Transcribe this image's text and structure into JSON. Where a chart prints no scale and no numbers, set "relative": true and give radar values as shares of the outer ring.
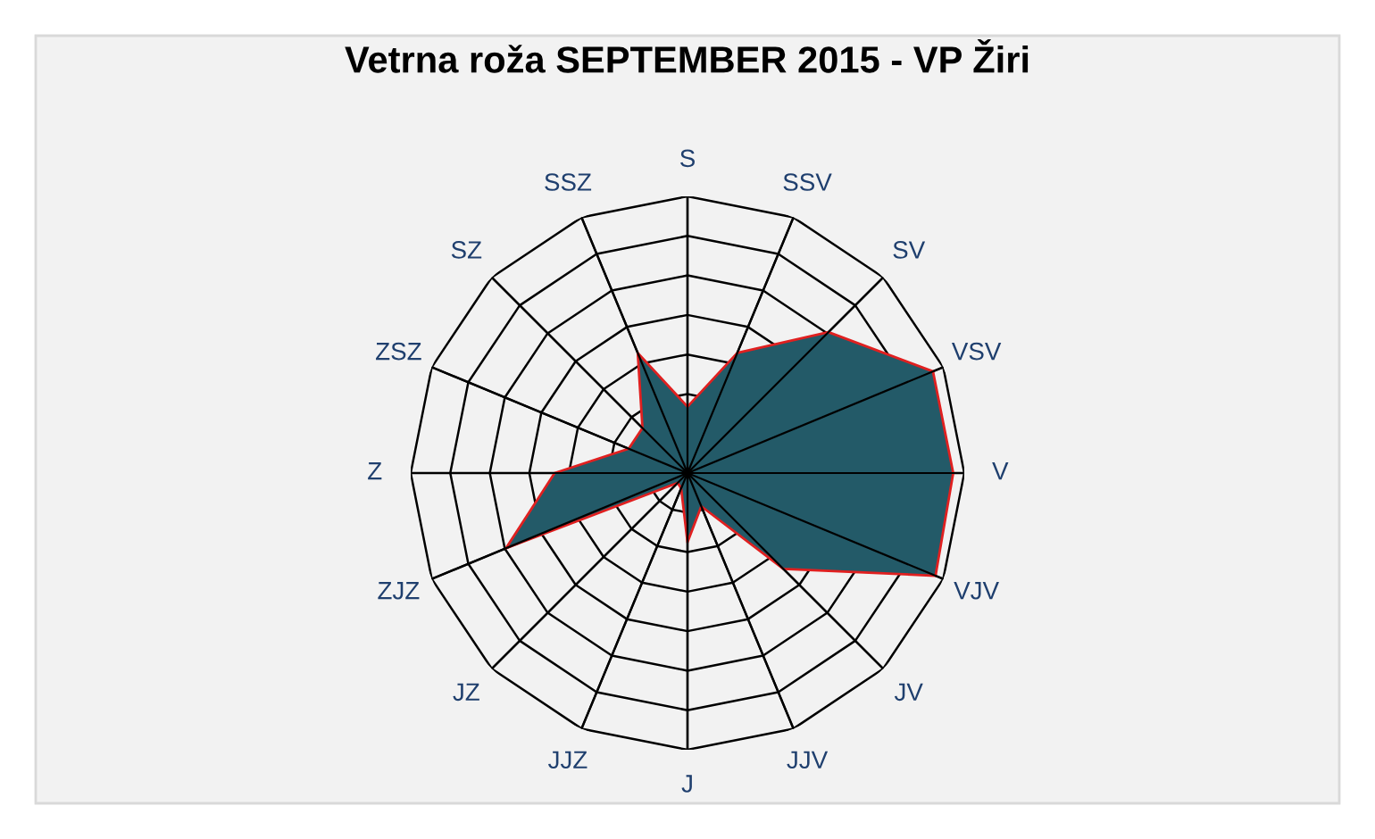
{
  "chart_data": {
    "type": "radar",
    "title": "Vetrna roža SEPTEMBER 2015 - VP Žiri",
    "relative": true,
    "categories": [
      "S",
      "SSV",
      "SV",
      "VSV",
      "V",
      "VJV",
      "JV",
      "JJV",
      "J",
      "JJZ",
      "JZ",
      "ZJZ",
      "Z",
      "ZSZ",
      "SZ",
      "SSZ"
    ],
    "series": [
      {
        "color": "#235a68",
        "values": [
          0.24,
          0.47,
          0.72,
          0.96,
          0.96,
          0.97,
          0.49,
          0.13,
          0.25,
          0.06,
          0.05,
          0.71,
          0.48,
          0.23,
          0.23,
          0.47
        ]
      }
    ],
    "legend": false,
    "marker": "none",
    "grid": true
  }
}
